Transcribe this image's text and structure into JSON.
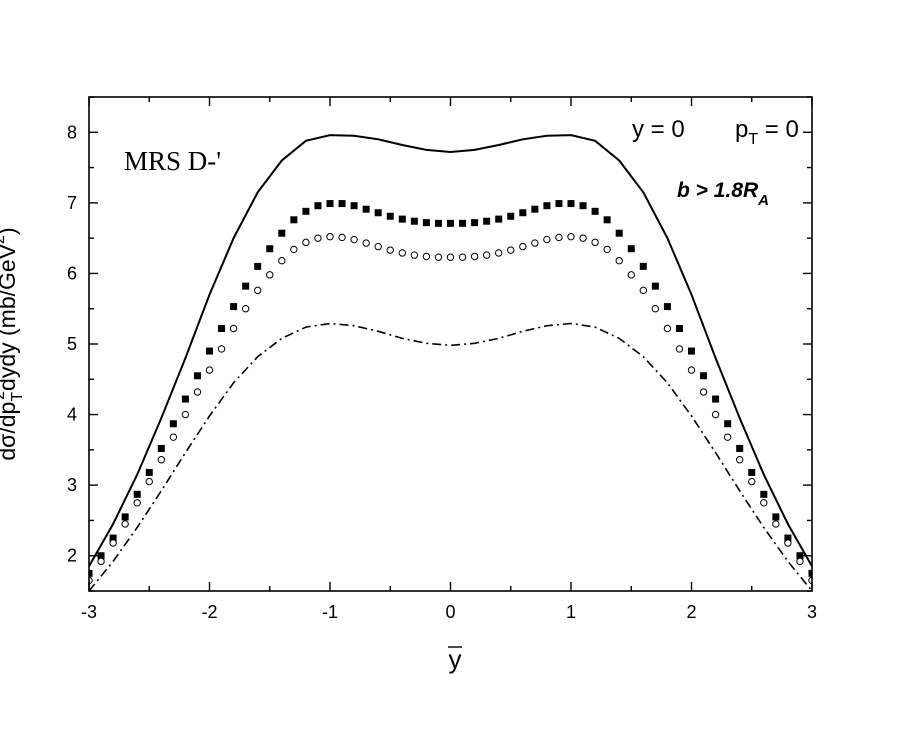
{
  "chart_data": {
    "type": "line",
    "title": "",
    "xlabel": "y",
    "ylabel": "dσ/dp_T^2 dydy (mb/GeV^2)",
    "ylabel_parts": {
      "main": "dσ/dp",
      "sub": "T",
      "sup": "2",
      "mid": "dy",
      "mid2": "dy (mb/GeV",
      "unit_sup": "2",
      "close": ")"
    },
    "xlim": [
      -3,
      3
    ],
    "ylim": [
      1.5,
      8.5
    ],
    "xticks": [
      -3,
      -2,
      -1,
      0,
      1,
      2,
      3
    ],
    "yticks": [
      2,
      3,
      4,
      5,
      6,
      7,
      8
    ],
    "grid": false,
    "annotations": {
      "model": "MRS D-'",
      "kinematics_y": "y  = 0",
      "kinematics_pt": "p",
      "kinematics_pt_sub": "T",
      "kinematics_pt_val": " = 0",
      "cut_b": "b > 1.8R",
      "cut_b_sub": "A"
    },
    "series": [
      {
        "style": "solid",
        "color": "#000000",
        "x": [
          -3.0,
          -2.8,
          -2.6,
          -2.4,
          -2.2,
          -2.0,
          -1.8,
          -1.6,
          -1.4,
          -1.2,
          -1.0,
          -0.8,
          -0.6,
          -0.4,
          -0.2,
          0.0,
          0.2,
          0.4,
          0.6,
          0.8,
          1.0,
          1.2,
          1.4,
          1.6,
          1.8,
          2.0,
          2.2,
          2.4,
          2.6,
          2.8,
          3.0
        ],
        "y": [
          1.85,
          2.45,
          3.15,
          3.95,
          4.8,
          5.7,
          6.5,
          7.15,
          7.6,
          7.88,
          7.96,
          7.95,
          7.9,
          7.82,
          7.75,
          7.72,
          7.75,
          7.82,
          7.9,
          7.95,
          7.96,
          7.88,
          7.6,
          7.15,
          6.5,
          5.7,
          4.8,
          3.95,
          3.15,
          2.45,
          1.85
        ]
      },
      {
        "style": "filled-square",
        "color": "#000000",
        "x": [
          -3.0,
          -2.9,
          -2.8,
          -2.7,
          -2.6,
          -2.5,
          -2.4,
          -2.3,
          -2.2,
          -2.1,
          -2.0,
          -1.9,
          -1.8,
          -1.7,
          -1.6,
          -1.5,
          -1.4,
          -1.3,
          -1.2,
          -1.1,
          -1.0,
          -0.9,
          -0.8,
          -0.7,
          -0.6,
          -0.5,
          -0.4,
          -0.3,
          -0.2,
          -0.1,
          0.0,
          0.1,
          0.2,
          0.3,
          0.4,
          0.5,
          0.6,
          0.7,
          0.8,
          0.9,
          1.0,
          1.1,
          1.2,
          1.3,
          1.4,
          1.5,
          1.6,
          1.7,
          1.8,
          1.9,
          2.0,
          2.1,
          2.2,
          2.3,
          2.4,
          2.5,
          2.6,
          2.7,
          2.8,
          2.9,
          3.0
        ],
        "y": [
          1.75,
          2.0,
          2.25,
          2.55,
          2.87,
          3.18,
          3.52,
          3.87,
          4.22,
          4.55,
          4.9,
          5.22,
          5.53,
          5.82,
          6.1,
          6.35,
          6.57,
          6.76,
          6.88,
          6.96,
          6.99,
          6.99,
          6.96,
          6.91,
          6.86,
          6.81,
          6.77,
          6.74,
          6.72,
          6.71,
          6.71,
          6.71,
          6.72,
          6.74,
          6.77,
          6.81,
          6.86,
          6.91,
          6.96,
          6.99,
          6.99,
          6.96,
          6.88,
          6.76,
          6.57,
          6.35,
          6.1,
          5.82,
          5.53,
          5.22,
          4.9,
          4.55,
          4.22,
          3.87,
          3.52,
          3.18,
          2.87,
          2.55,
          2.25,
          2.0,
          1.75
        ]
      },
      {
        "style": "open-circle",
        "color": "#000000",
        "x": [
          -3.0,
          -2.9,
          -2.8,
          -2.7,
          -2.6,
          -2.5,
          -2.4,
          -2.3,
          -2.2,
          -2.1,
          -2.0,
          -1.9,
          -1.8,
          -1.7,
          -1.6,
          -1.5,
          -1.4,
          -1.3,
          -1.2,
          -1.1,
          -1.0,
          -0.9,
          -0.8,
          -0.7,
          -0.6,
          -0.5,
          -0.4,
          -0.3,
          -0.2,
          -0.1,
          0.0,
          0.1,
          0.2,
          0.3,
          0.4,
          0.5,
          0.6,
          0.7,
          0.8,
          0.9,
          1.0,
          1.1,
          1.2,
          1.3,
          1.4,
          1.5,
          1.6,
          1.7,
          1.8,
          1.9,
          2.0,
          2.1,
          2.2,
          2.3,
          2.4,
          2.5,
          2.6,
          2.7,
          2.8,
          2.9,
          3.0
        ],
        "y": [
          1.65,
          1.92,
          2.18,
          2.45,
          2.75,
          3.05,
          3.36,
          3.68,
          4.0,
          4.32,
          4.63,
          4.93,
          5.22,
          5.5,
          5.76,
          5.98,
          6.18,
          6.34,
          6.44,
          6.5,
          6.52,
          6.51,
          6.48,
          6.43,
          6.38,
          6.33,
          6.29,
          6.26,
          6.24,
          6.23,
          6.23,
          6.23,
          6.24,
          6.26,
          6.29,
          6.33,
          6.38,
          6.43,
          6.48,
          6.51,
          6.52,
          6.5,
          6.44,
          6.34,
          6.18,
          5.98,
          5.76,
          5.5,
          5.22,
          4.93,
          4.63,
          4.32,
          4.0,
          3.68,
          3.36,
          3.05,
          2.75,
          2.45,
          2.18,
          1.92,
          1.65
        ]
      },
      {
        "style": "dash-dot",
        "color": "#000000",
        "x": [
          -3.0,
          -2.8,
          -2.6,
          -2.4,
          -2.2,
          -2.0,
          -1.8,
          -1.6,
          -1.4,
          -1.2,
          -1.0,
          -0.8,
          -0.6,
          -0.4,
          -0.2,
          0.0,
          0.2,
          0.4,
          0.6,
          0.8,
          1.0,
          1.2,
          1.4,
          1.6,
          1.8,
          2.0,
          2.2,
          2.4,
          2.6,
          2.8,
          3.0
        ],
        "y": [
          1.5,
          1.92,
          2.4,
          2.92,
          3.46,
          3.98,
          4.45,
          4.82,
          5.08,
          5.24,
          5.29,
          5.26,
          5.18,
          5.08,
          5.01,
          4.98,
          5.01,
          5.08,
          5.18,
          5.26,
          5.29,
          5.24,
          5.08,
          4.82,
          4.45,
          3.98,
          3.46,
          2.92,
          2.4,
          1.92,
          1.5
        ]
      }
    ]
  }
}
